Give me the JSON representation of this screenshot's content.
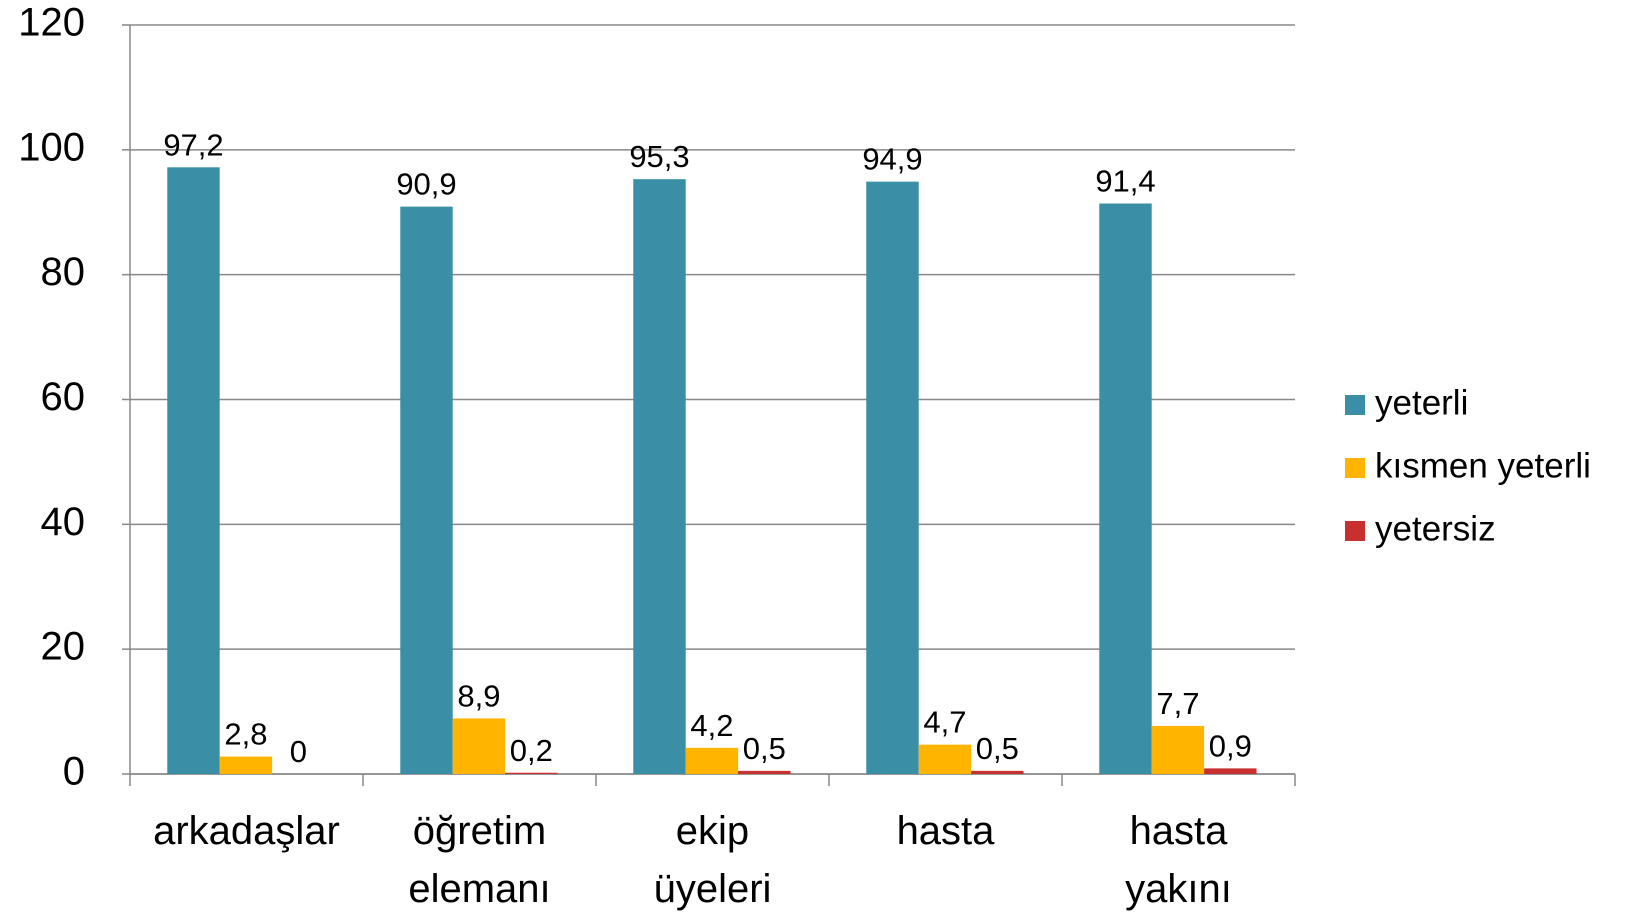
{
  "chart_data": {
    "type": "bar",
    "categories": [
      "arkadaşlar",
      "öğretim elemanı",
      "ekip üyeleri",
      "hasta",
      "hasta yakını"
    ],
    "series": [
      {
        "name": "yeterli",
        "color": "#3a8fa6",
        "values": [
          97.2,
          90.9,
          95.3,
          94.9,
          91.4
        ],
        "value_labels": [
          "97,2",
          "90,9",
          "95,3",
          "94,9",
          "91,4"
        ]
      },
      {
        "name": "kısmen yeterli",
        "color": "#ffb400",
        "values": [
          2.8,
          8.9,
          4.2,
          4.7,
          7.7
        ],
        "value_labels": [
          "2,8",
          "8,9",
          "4,2",
          "4,7",
          "7,7"
        ]
      },
      {
        "name": "yetersiz",
        "color": "#c8302f",
        "values": [
          0,
          0.2,
          0.5,
          0.5,
          0.9
        ],
        "value_labels": [
          "0",
          "0,2",
          "0,5",
          "0,5",
          "0,9"
        ]
      }
    ],
    "ylim": [
      0,
      120
    ],
    "yticks": [
      0,
      20,
      40,
      60,
      80,
      100,
      120
    ],
    "grid": true,
    "legend": "right"
  }
}
